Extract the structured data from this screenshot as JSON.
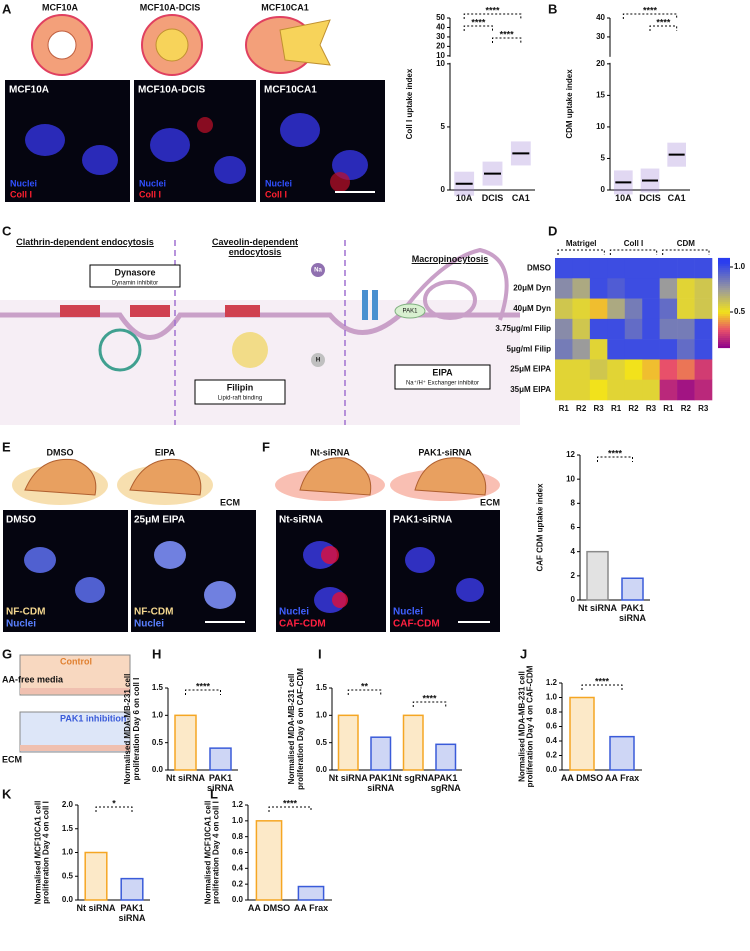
{
  "panel_labels": [
    "A",
    "B",
    "C",
    "D",
    "E",
    "F",
    "G",
    "H",
    "I",
    "J",
    "K",
    "L"
  ],
  "panel_a": {
    "cell_lines": [
      "MCF10A",
      "MCF10A-DCIS",
      "MCF10CA1"
    ],
    "image_titles": [
      "MCF10A",
      "MCF10A-DCIS",
      "MCF10CA1"
    ],
    "stain_nuclei": "Nuclei",
    "stain_coll": "Coll I"
  },
  "panel_c": {
    "pathways": [
      "Clathrin-dependent endocytosis",
      "Caveolin-dependent endocytosis",
      "Macropinocytosis"
    ],
    "inhibitors": [
      {
        "name": "Dynasore",
        "note": "Dynamin inhibitor"
      },
      {
        "name": "EIPA",
        "note": "Na⁺/H⁺ Exchanger inhibitor"
      },
      {
        "name": "Filipin",
        "note": "Lipid-raft binding"
      }
    ],
    "ions": [
      "Na",
      "H"
    ],
    "kinase": "PAK1"
  },
  "panel_e": {
    "conditions": [
      "DMSO",
      "EIPA"
    ],
    "ecm": "ECM",
    "image_titles": [
      "DMSO",
      "25μM EIPA"
    ],
    "stain_cdm": "NF-CDM",
    "stain_nuclei": "Nuclei"
  },
  "panel_f": {
    "conditions": [
      "Nt-siRNA",
      "PAK1-siRNA"
    ],
    "ecm": "ECM",
    "image_titles": [
      "Nt-siRNA",
      "PAK1-siRNA"
    ],
    "stain_nuclei": "Nuclei",
    "stain_cdm": "CAF-CDM"
  },
  "panel_g": {
    "media": "AA-free media",
    "control": "Control",
    "treatment": "PAK1 inhibition",
    "ecm": "ECM"
  },
  "chart_data": [
    {
      "type": "dotplot",
      "ylabel": "Coll I uptake index",
      "categories": [
        "10A",
        "DCIS",
        "CA1"
      ],
      "values": [
        0.5,
        1.3,
        2.9
      ],
      "color": "#9b7fd4",
      "ylim": [
        0,
        10
      ],
      "yticks": [
        0,
        5,
        10
      ],
      "ylim_upper": [
        10,
        50
      ],
      "yticks_upper": [
        10,
        20,
        30,
        40,
        50
      ],
      "significance": [
        {
          "pair": [
            0,
            2
          ],
          "label": "****"
        },
        {
          "pair": [
            0,
            1
          ],
          "label": "****"
        },
        {
          "pair": [
            1,
            2
          ],
          "label": "****"
        }
      ]
    },
    {
      "type": "dotplot",
      "ylabel": "CDM uptake index",
      "categories": [
        "10A",
        "DCIS",
        "CA1"
      ],
      "values": [
        1.2,
        1.5,
        5.6
      ],
      "color": "#9b7fd4",
      "ylim": [
        0,
        20
      ],
      "yticks": [
        0,
        5,
        10,
        15,
        20
      ],
      "ylim_upper": [
        20,
        40
      ],
      "yticks_upper": [
        30,
        40
      ],
      "significance": [
        {
          "pair": [
            0,
            2
          ],
          "label": "****"
        },
        {
          "pair": [
            1,
            2
          ],
          "label": "****"
        }
      ]
    },
    {
      "type": "heatmap",
      "groups": [
        "Matrigel",
        "Coll I",
        "CDM"
      ],
      "columns": [
        "R1",
        "R2",
        "R3",
        "R1",
        "R2",
        "R3",
        "R1",
        "R2",
        "R3"
      ],
      "rows": [
        "DMSO",
        "20μM Dyn",
        "40μM Dyn",
        "3.75μg/ml Filip",
        "5μg/ml Filip",
        "25μM EIPA",
        "35μM EIPA"
      ],
      "values": [
        [
          1,
          1,
          1,
          1,
          1,
          1,
          1,
          1,
          1
        ],
        [
          0.8,
          0.7,
          1,
          0.95,
          1,
          1,
          0.75,
          0.55,
          0.6
        ],
        [
          0.6,
          0.55,
          0.45,
          0.7,
          0.85,
          1,
          0.9,
          0.55,
          0.6
        ],
        [
          0.8,
          0.6,
          1,
          1,
          0.9,
          1,
          0.85,
          0.85,
          1
        ],
        [
          0.85,
          0.75,
          0.55,
          1,
          1,
          1,
          1,
          0.9,
          1
        ],
        [
          0.55,
          0.55,
          0.6,
          0.55,
          0.5,
          0.45,
          0.3,
          0.35,
          0.25
        ],
        [
          0.55,
          0.55,
          0.5,
          0.55,
          0.55,
          0.55,
          0.2,
          0.15,
          0.2
        ]
      ],
      "zlim": [
        0.1,
        1.1
      ],
      "zticks": [
        0.5,
        {
          "value": 1,
          "label": "1.0"
        }
      ],
      "colorscale": [
        [
          0.1,
          "#8b008b"
        ],
        [
          0.3,
          "#e8506a"
        ],
        [
          0.5,
          "#f2e21b"
        ],
        [
          0.75,
          "#9b9b9b"
        ],
        [
          1.05,
          "#2a3df0"
        ]
      ]
    },
    {
      "type": "bar",
      "ylabel": "CAF CDM uptake index",
      "categories": [
        "Nt siRNA",
        "PAK1 siRNA"
      ],
      "values": [
        4.0,
        1.8
      ],
      "colors": [
        "#8a8a8a",
        "#3a5bd9"
      ],
      "ylim": [
        0,
        12
      ],
      "yticks": [
        0,
        2,
        4,
        6,
        8,
        10,
        12
      ],
      "significance": [
        {
          "pair": [
            0,
            1
          ],
          "label": "****"
        }
      ]
    },
    {
      "type": "bar",
      "ylabel": "Normalised MDA-MB-231 cell proliferation Day 6 on coll I",
      "categories": [
        "Nt siRNA",
        "PAK1 siRNA"
      ],
      "values": [
        1.0,
        0.4
      ],
      "colors": [
        "#f5a623",
        "#3a5bd9"
      ],
      "ylim": [
        0,
        1.5
      ],
      "yticks": [
        {
          "value": 0,
          "label": "0.0"
        },
        0.5,
        {
          "value": 1,
          "label": "1.0"
        },
        1.5
      ],
      "significance": [
        {
          "pair": [
            0,
            1
          ],
          "label": "****"
        }
      ]
    },
    {
      "type": "bar",
      "ylabel": "Normalised MDA-MB-231 cell proliferation Day 6 on CAF-CDM",
      "categories": [
        "Nt siRNA",
        "PAK1 siRNA",
        "Nt sgRNA",
        "PAK1 sgRNA"
      ],
      "values": [
        1.0,
        0.6,
        1.0,
        0.47
      ],
      "colors": [
        "#f5a623",
        "#3a5bd9",
        "#f5a623",
        "#3a5bd9"
      ],
      "ylim": [
        0,
        1.5
      ],
      "yticks": [
        {
          "value": 0,
          "label": "0.0"
        },
        0.5,
        {
          "value": 1,
          "label": "1.0"
        },
        1.5
      ],
      "significance": [
        {
          "pair": [
            0,
            1
          ],
          "label": "**"
        },
        {
          "pair": [
            2,
            3
          ],
          "label": "****"
        }
      ]
    },
    {
      "type": "bar",
      "ylabel": "Normalised MDA-MB-231 cell proliferation Day 4 on CAF-CDM",
      "categories": [
        "AA DMSO",
        "AA Frax"
      ],
      "values": [
        1.0,
        0.46
      ],
      "colors": [
        "#f5a623",
        "#3a5bd9"
      ],
      "ylim": [
        0,
        1.2
      ],
      "yticks": [
        {
          "value": 0,
          "label": "0.0"
        },
        0.2,
        0.4,
        0.6,
        0.8,
        {
          "value": 1,
          "label": "1.0"
        },
        1.2
      ],
      "significance": [
        {
          "pair": [
            0,
            1
          ],
          "label": "****"
        }
      ]
    },
    {
      "type": "bar",
      "ylabel": "Normalised MCF10CA1 cell proliferation Day 4 on coll I",
      "categories": [
        "Nt siRNA",
        "PAK1 siRNA"
      ],
      "values": [
        1.0,
        0.45
      ],
      "colors": [
        "#f5a623",
        "#3a5bd9"
      ],
      "ylim": [
        0,
        2
      ],
      "yticks": [
        {
          "value": 0,
          "label": "0.0"
        },
        0.5,
        {
          "value": 1,
          "label": "1.0"
        },
        1.5,
        {
          "value": 2,
          "label": "2.0"
        }
      ],
      "significance": [
        {
          "pair": [
            0,
            1
          ],
          "label": "*"
        }
      ]
    },
    {
      "type": "bar",
      "ylabel": "Normalised MCF10CA1 cell proliferation Day 4 on coll I",
      "categories": [
        "AA DMSO",
        "AA Frax"
      ],
      "values": [
        1.0,
        0.17
      ],
      "colors": [
        "#f5a623",
        "#3a5bd9"
      ],
      "ylim": [
        0,
        1.2
      ],
      "yticks": [
        {
          "value": 0,
          "label": "0.0"
        },
        0.2,
        0.4,
        0.6,
        0.8,
        {
          "value": 1,
          "label": "1.0"
        },
        1.2
      ],
      "significance": [
        {
          "pair": [
            0,
            1
          ],
          "label": "****"
        }
      ]
    }
  ]
}
